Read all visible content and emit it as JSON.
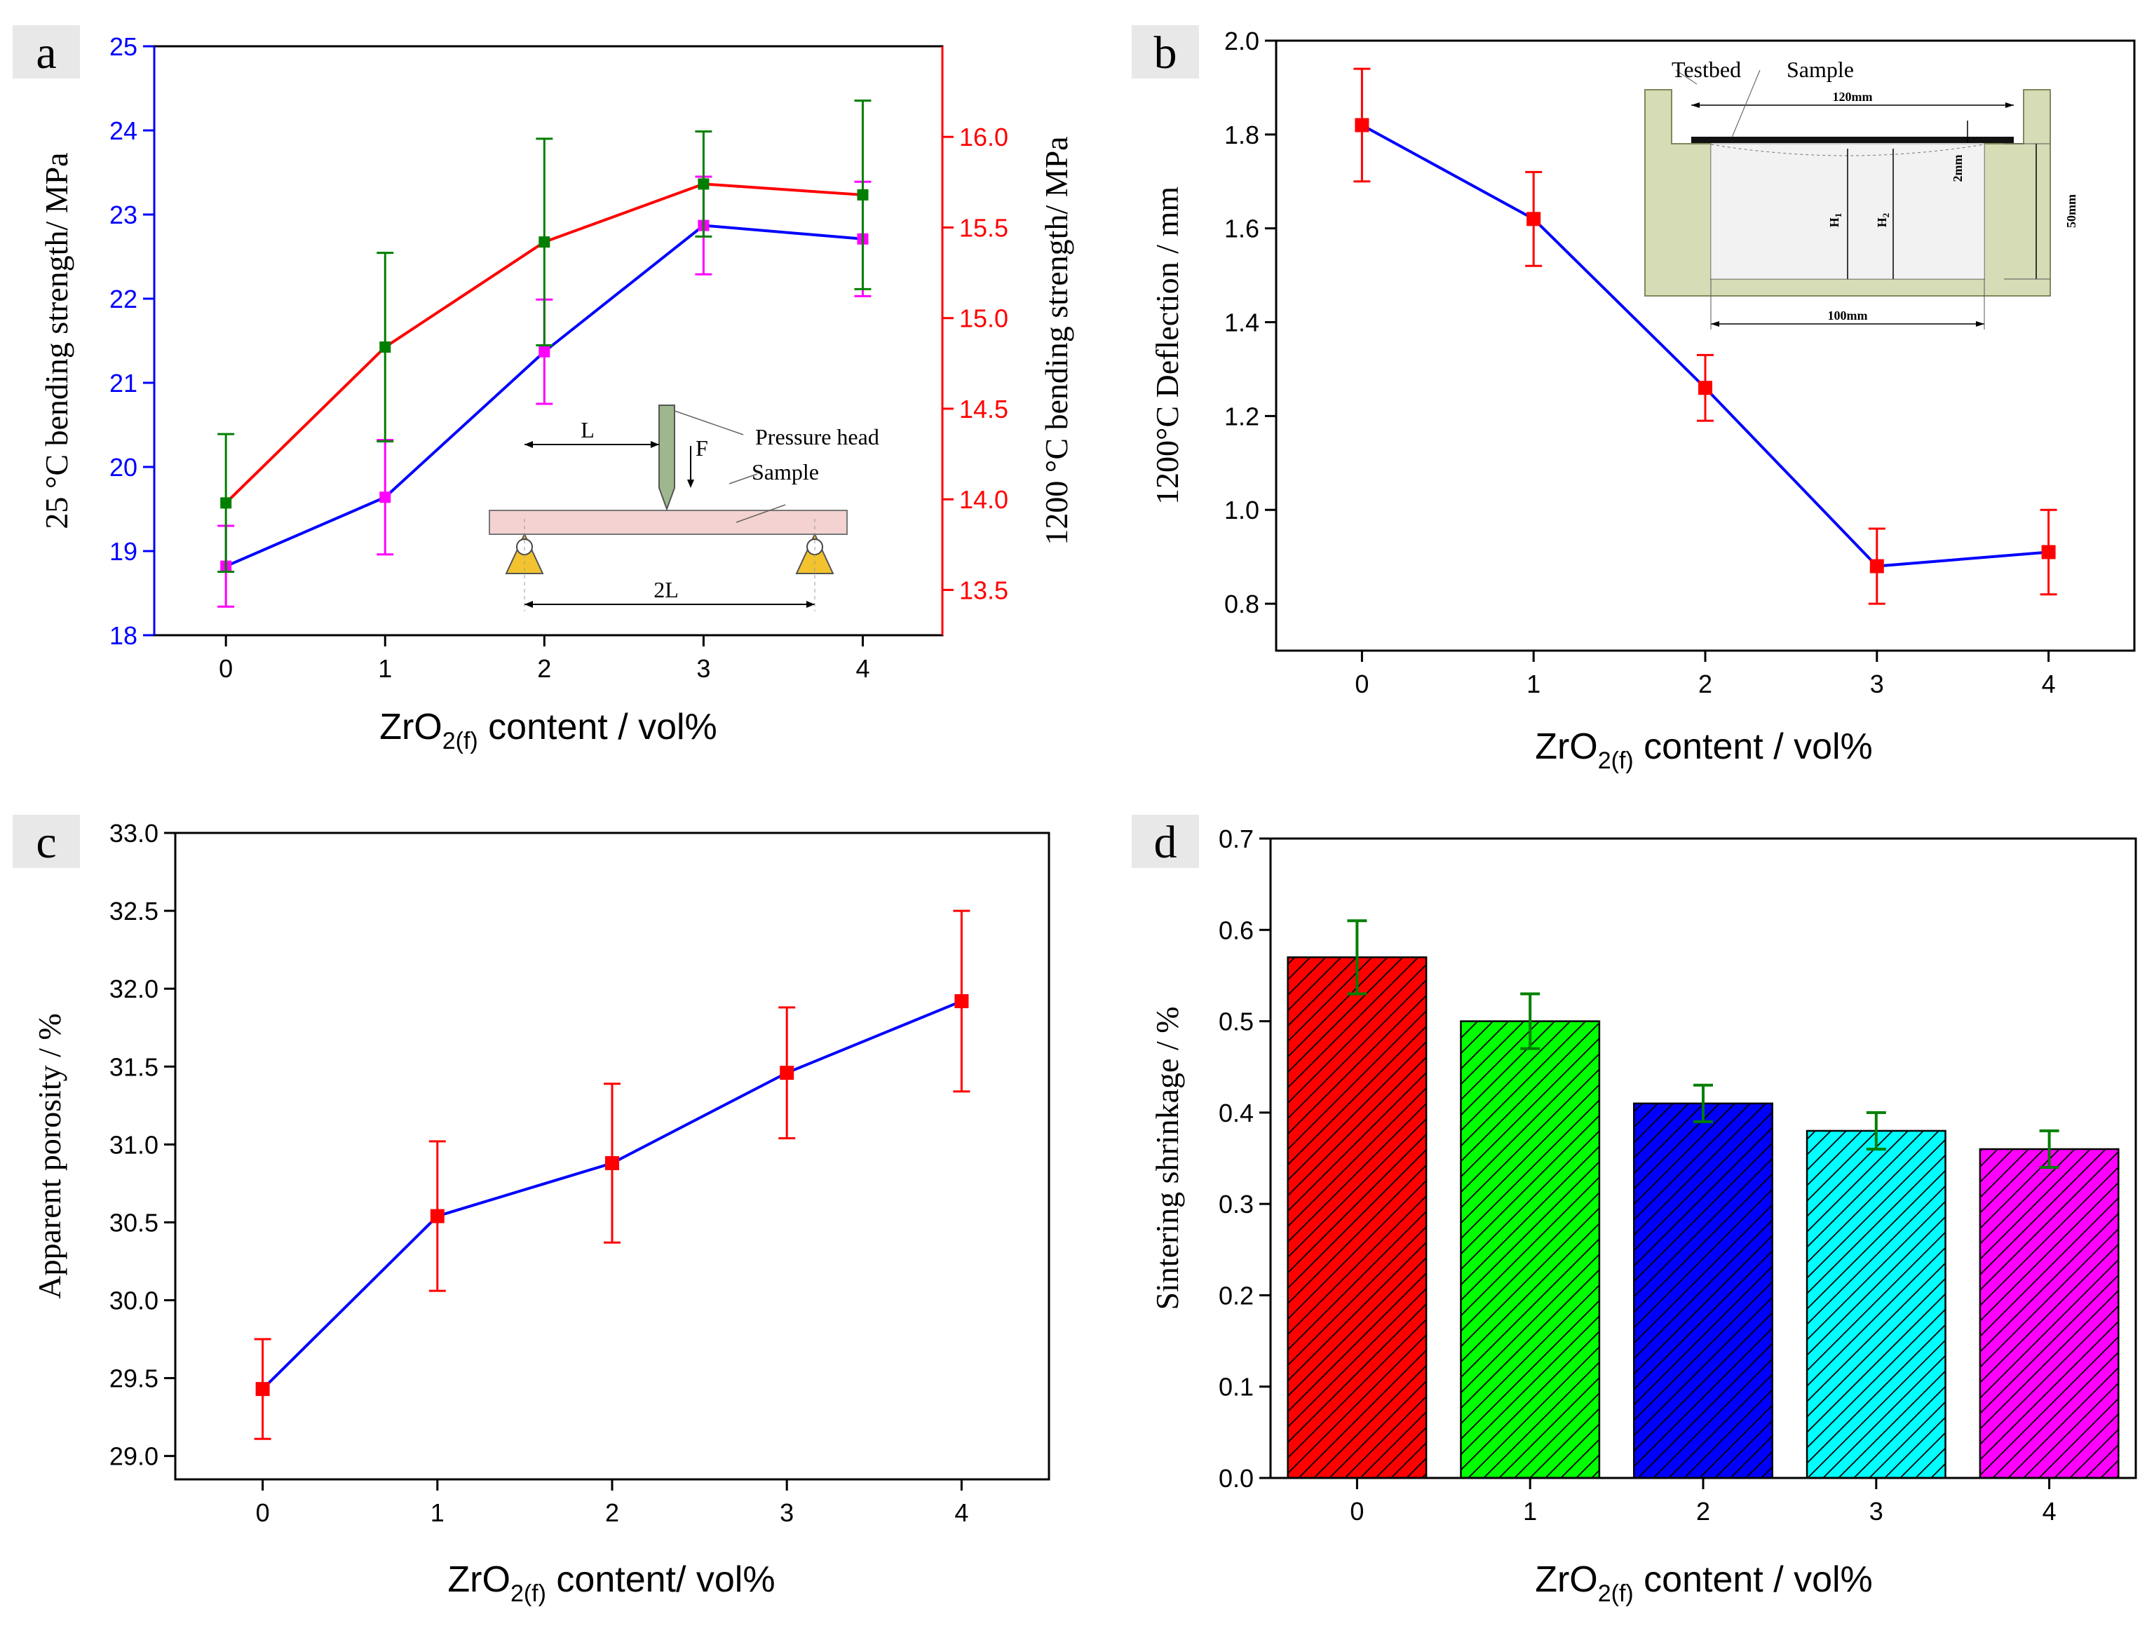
{
  "chart_data": [
    {
      "panel": "a",
      "type": "line",
      "xlabel_parts": {
        "pre": "ZrO",
        "sub": "2(f)",
        "post": " content / vol%"
      },
      "x": [
        0,
        1,
        2,
        3,
        4
      ],
      "xticks": [
        "0",
        "1",
        "2",
        "3",
        "4"
      ],
      "xlim": [
        -0.45,
        4.5
      ],
      "ylabel_left": "25 °C bending strength/ MPa",
      "ylim_left": [
        18,
        25
      ],
      "yticks_left": [
        "18",
        "19",
        "20",
        "21",
        "22",
        "23",
        "24",
        "25"
      ],
      "ylabel_right": "1200 °C bending strength/ MPa",
      "ylim_right": [
        13.25,
        16.5
      ],
      "yticks_right": [
        "13.5",
        "14.0",
        "14.5",
        "15.0",
        "15.5",
        "16.0"
      ],
      "yticks_right_values": [
        13.5,
        14.0,
        14.5,
        15.0,
        15.5,
        16.0
      ],
      "series": [
        {
          "name": "25 °C bending strength",
          "axis": "left",
          "color": "#0000ff",
          "marker_color": "#ff00ff",
          "values": [
            18.82,
            19.64,
            21.37,
            22.87,
            22.71
          ],
          "errors": [
            0.48,
            0.68,
            0.62,
            0.58,
            0.68
          ]
        },
        {
          "name": "1200 °C bending strength",
          "axis": "right",
          "color": "#ff0000",
          "marker_color": "#007f00",
          "values": [
            13.98,
            14.84,
            15.42,
            15.74,
            15.68
          ],
          "errors": [
            0.38,
            0.52,
            0.57,
            0.29,
            0.52
          ]
        }
      ],
      "inset": {
        "pressure_head": "Pressure head",
        "sample": "Sample",
        "L": "L",
        "F": "F",
        "two_L": "2L"
      }
    },
    {
      "panel": "b",
      "type": "line",
      "xlabel_parts": {
        "pre": "ZrO",
        "sub": "2(f)",
        "post": " content / vol%"
      },
      "x": [
        0,
        1,
        2,
        3,
        4
      ],
      "xticks": [
        "0",
        "1",
        "2",
        "3",
        "4"
      ],
      "xlim": [
        -0.5,
        4.5
      ],
      "ylabel": "1200°C Deflection / mm",
      "ylim": [
        0.7,
        2.0
      ],
      "yticks": [
        "0.8",
        "1.0",
        "1.2",
        "1.4",
        "1.6",
        "1.8",
        "2.0"
      ],
      "yticks_values": [
        0.8,
        1.0,
        1.2,
        1.4,
        1.6,
        1.8,
        2.0
      ],
      "series": [
        {
          "name": "Deflection",
          "color": "#0000ff",
          "marker_color": "#ff0000",
          "values": [
            1.82,
            1.62,
            1.26,
            0.88,
            0.91
          ],
          "errors": [
            0.12,
            0.1,
            0.07,
            0.08,
            0.09
          ]
        }
      ],
      "inset": {
        "testbed": "Testbed",
        "sample": "Sample",
        "w120": "120mm",
        "w100": "100mm",
        "h50": "50mm",
        "h2": "2mm",
        "H1": "H",
        "H1_sub": "1",
        "H2": "H",
        "H2_sub": "2"
      }
    },
    {
      "panel": "c",
      "type": "line",
      "xlabel_parts": {
        "pre": "ZrO",
        "sub": "2(f)",
        "post": " content/ vol%"
      },
      "x": [
        0,
        1,
        2,
        3,
        4
      ],
      "xticks": [
        "0",
        "1",
        "2",
        "3",
        "4"
      ],
      "xlim": [
        -0.5,
        4.5
      ],
      "ylabel": "Apparent porosity / %",
      "ylim": [
        28.85,
        33.0
      ],
      "yticks": [
        "29.0",
        "29.5",
        "30.0",
        "30.5",
        "31.0",
        "31.5",
        "32.0",
        "32.5",
        "33.0"
      ],
      "yticks_values": [
        29.0,
        29.5,
        30.0,
        30.5,
        31.0,
        31.5,
        32.0,
        32.5,
        33.0
      ],
      "series": [
        {
          "name": "Apparent porosity",
          "color": "#0000ff",
          "marker_color": "#ff0000",
          "values": [
            29.43,
            30.54,
            30.88,
            31.46,
            31.92
          ],
          "errors": [
            0.32,
            0.48,
            0.51,
            0.42,
            0.58
          ]
        }
      ]
    },
    {
      "panel": "d",
      "type": "bar",
      "xlabel_parts": {
        "pre": "ZrO",
        "sub": "2(f)",
        "post": " content / vol%"
      },
      "categories": [
        "0",
        "1",
        "2",
        "3",
        "4"
      ],
      "xlim": [
        -0.5,
        4.5
      ],
      "ylabel": "Sintering shrinkage / %",
      "ylim": [
        0,
        0.7
      ],
      "yticks": [
        "0.0",
        "0.1",
        "0.2",
        "0.3",
        "0.4",
        "0.5",
        "0.6",
        "0.7"
      ],
      "yticks_values": [
        0,
        0.1,
        0.2,
        0.3,
        0.4,
        0.5,
        0.6,
        0.7
      ],
      "values": [
        0.57,
        0.5,
        0.41,
        0.38,
        0.36
      ],
      "errors": [
        0.04,
        0.03,
        0.02,
        0.02,
        0.02
      ],
      "bar_colors": [
        "#ff0000",
        "#00ff00",
        "#0000ff",
        "#00ffff",
        "#ff00ff"
      ],
      "error_color": "#007f00"
    }
  ]
}
